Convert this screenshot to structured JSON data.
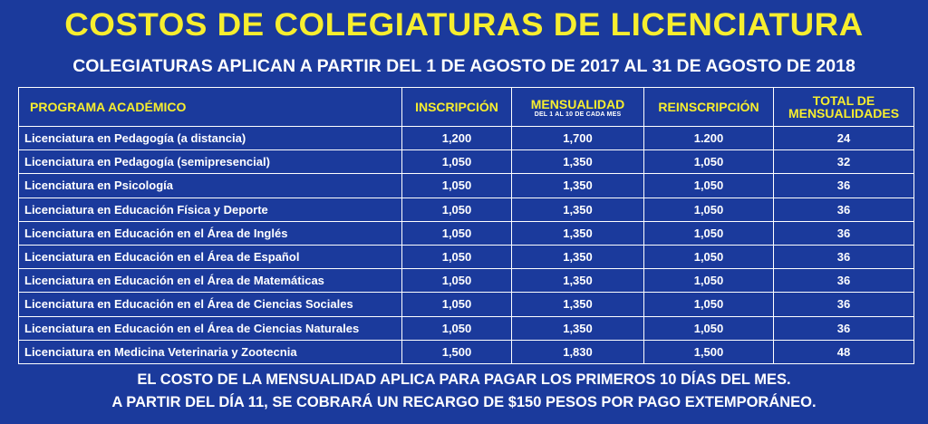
{
  "title": "COSTOS DE COLEGIATURAS DE LICENCIATURA",
  "subtitle": "COLEGIATURAS APLICAN A PARTIR DEL 1 DE AGOSTO DE 2017 AL 31 DE AGOSTO DE 2018",
  "table": {
    "headers": {
      "programa": "PROGRAMA ACADÉMICO",
      "inscripcion": "INSCRIPCIÓN",
      "mensualidad": "MENSUALIDAD",
      "mensualidad_note": "DEL 1 AL 10 DE CADA MES",
      "reinscripcion": "REINSCRIPCIÓN",
      "total_line1": "TOTAL DE",
      "total_line2": "MENSUALIDADES"
    },
    "rows": [
      {
        "programa": "Licenciatura en Pedagogía (a distancia)",
        "inscripcion": "1,200",
        "mensualidad": "1,700",
        "reinscripcion": "1.200",
        "total": "24"
      },
      {
        "programa": "Licenciatura en Pedagogía (semipresencial)",
        "inscripcion": "1,050",
        "mensualidad": "1,350",
        "reinscripcion": "1,050",
        "total": "32"
      },
      {
        "programa": "Licenciatura en Psicología",
        "inscripcion": "1,050",
        "mensualidad": "1,350",
        "reinscripcion": "1,050",
        "total": "36"
      },
      {
        "programa": "Licenciatura en Educación Física y Deporte",
        "inscripcion": "1,050",
        "mensualidad": "1,350",
        "reinscripcion": "1,050",
        "total": "36"
      },
      {
        "programa": "Licenciatura en Educación en el Área de Inglés",
        "inscripcion": "1,050",
        "mensualidad": "1,350",
        "reinscripcion": "1,050",
        "total": "36"
      },
      {
        "programa": "Licenciatura en Educación en el Área de Español",
        "inscripcion": "1,050",
        "mensualidad": "1,350",
        "reinscripcion": "1,050",
        "total": "36"
      },
      {
        "programa": "Licenciatura en Educación en el Área de Matemáticas",
        "inscripcion": "1,050",
        "mensualidad": "1,350",
        "reinscripcion": "1,050",
        "total": "36"
      },
      {
        "programa": "Licenciatura en Educación en el Área de Ciencias Sociales",
        "inscripcion": "1,050",
        "mensualidad": "1,350",
        "reinscripcion": "1,050",
        "total": "36"
      },
      {
        "programa": "Licenciatura en Educación en el Área de Ciencias Naturales",
        "inscripcion": "1,050",
        "mensualidad": "1,350",
        "reinscripcion": "1,050",
        "total": "36"
      },
      {
        "programa": "Licenciatura en Medicina Veterinaria y Zootecnia",
        "inscripcion": "1,500",
        "mensualidad": "1,830",
        "reinscripcion": "1,500",
        "total": "48"
      }
    ]
  },
  "footer": {
    "line1": "EL COSTO DE LA MENSUALIDAD APLICA PARA PAGAR LOS PRIMEROS 10 DÍAS DEL MES.",
    "line2": "A PARTIR DEL DÍA 11, SE COBRARÁ UN RECARGO DE $150 PESOS POR PAGO EXTEMPORÁNEO."
  },
  "colors": {
    "background": "#1b3a9c",
    "title": "#f7ee2e",
    "header_text": "#f7ee2e",
    "body_text": "#ffffff"
  }
}
